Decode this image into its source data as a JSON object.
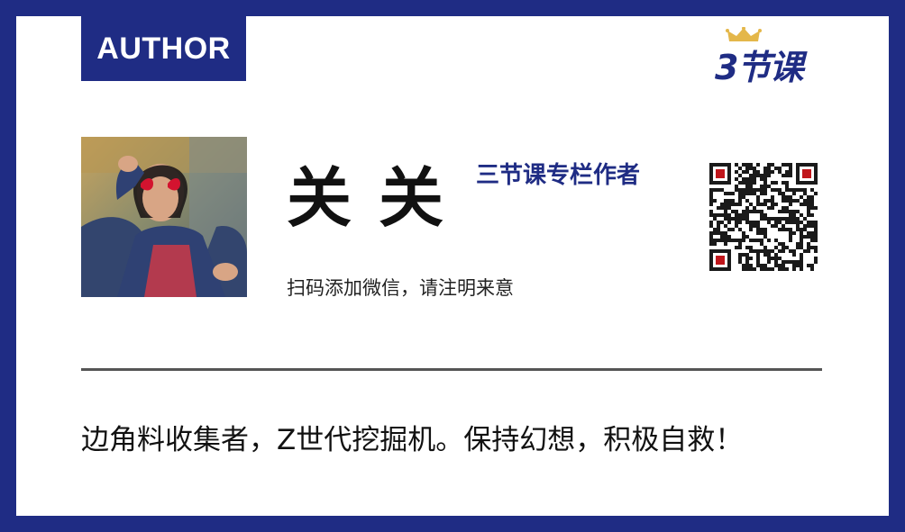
{
  "card": {
    "tag_label": "AUTHOR",
    "logo_text": "3节课",
    "author_name": "关关",
    "role": "三节课专栏作者",
    "scan_hint": "扫码添加微信，请注明来意",
    "motto": "边角料收集者，Z世代挖掘机。保持幻想，积极自救！"
  },
  "icons": {
    "logo_crown": "crown-icon",
    "qr": "qr-code-icon",
    "avatar": "author-photo"
  },
  "colors": {
    "brand_navy": "#1f2c84",
    "card_bg": "#ffffff",
    "crown_gold": "#e4b74a",
    "qr_marker_red": "#c0161b"
  }
}
